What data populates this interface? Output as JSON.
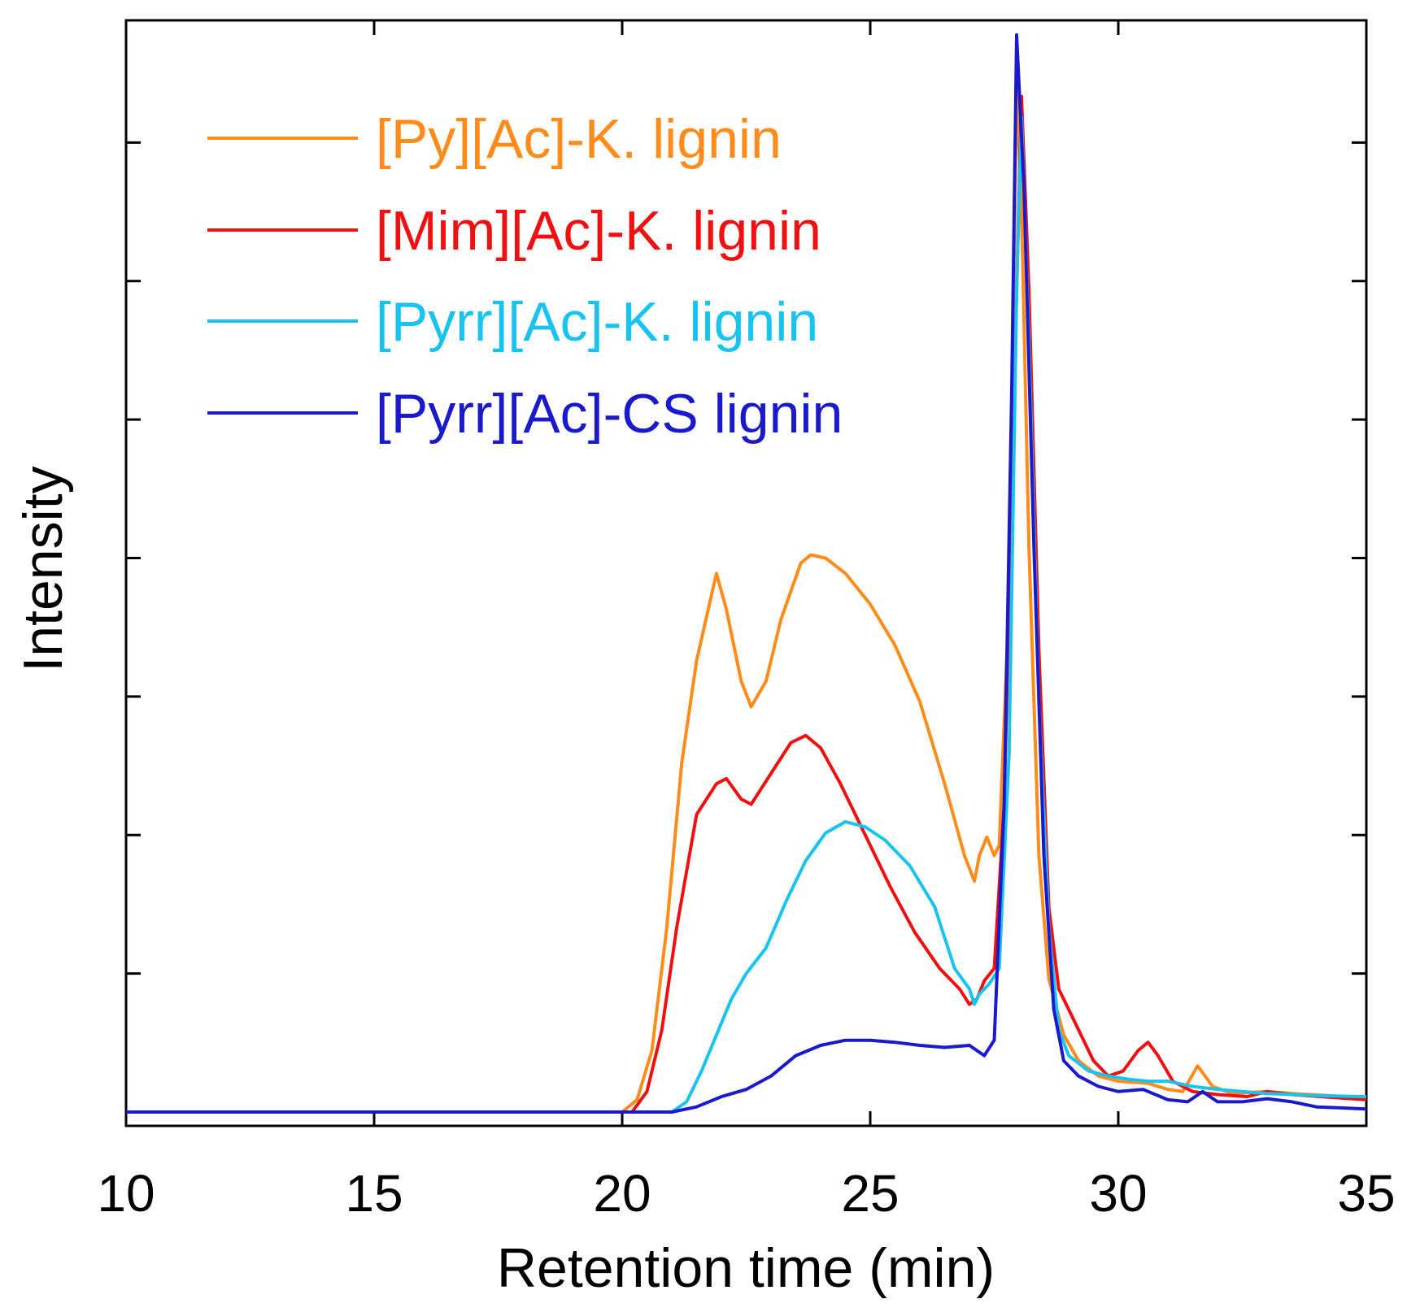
{
  "chart_data": {
    "type": "line",
    "title": "",
    "xlabel": "Retention time (min)",
    "ylabel": "Intensity",
    "xlim": [
      10,
      35
    ],
    "ylim": [
      0,
      1.0
    ],
    "xticks": [
      10,
      15,
      20,
      25,
      30,
      35
    ],
    "xtick_labels": [
      "10",
      "15",
      "20",
      "25",
      "30",
      "35"
    ],
    "yticks": [
      0.135,
      0.27,
      0.405,
      0.54,
      0.675,
      0.81,
      0.945
    ],
    "grid": false,
    "legend_position": "top-left",
    "series": [
      {
        "name": "[Py][Ac]-K. lignin",
        "color": "#ff8c1a",
        "points": [
          [
            10,
            0
          ],
          [
            20,
            0
          ],
          [
            20.3,
            0.012
          ],
          [
            20.6,
            0.06
          ],
          [
            20.9,
            0.18
          ],
          [
            21.2,
            0.34
          ],
          [
            21.5,
            0.44
          ],
          [
            21.9,
            0.525
          ],
          [
            22.1,
            0.49
          ],
          [
            22.4,
            0.42
          ],
          [
            22.6,
            0.395
          ],
          [
            22.9,
            0.42
          ],
          [
            23.2,
            0.48
          ],
          [
            23.6,
            0.535
          ],
          [
            23.8,
            0.543
          ],
          [
            24.1,
            0.54
          ],
          [
            24.5,
            0.525
          ],
          [
            25.0,
            0.495
          ],
          [
            25.5,
            0.455
          ],
          [
            26.0,
            0.4
          ],
          [
            26.5,
            0.32
          ],
          [
            26.9,
            0.25
          ],
          [
            27.1,
            0.225
          ],
          [
            27.2,
            0.25
          ],
          [
            27.35,
            0.268
          ],
          [
            27.5,
            0.25
          ],
          [
            27.6,
            0.26
          ],
          [
            27.8,
            0.5
          ],
          [
            27.95,
            1.0
          ],
          [
            28.05,
            0.88
          ],
          [
            28.2,
            0.55
          ],
          [
            28.4,
            0.25
          ],
          [
            28.6,
            0.13
          ],
          [
            28.9,
            0.075
          ],
          [
            29.2,
            0.05
          ],
          [
            29.6,
            0.035
          ],
          [
            30.0,
            0.03
          ],
          [
            30.6,
            0.028
          ],
          [
            31.0,
            0.022
          ],
          [
            31.3,
            0.02
          ],
          [
            31.6,
            0.045
          ],
          [
            31.9,
            0.025
          ],
          [
            32.3,
            0.018
          ],
          [
            33.0,
            0.02
          ],
          [
            33.5,
            0.018
          ],
          [
            35,
            0.014
          ]
        ]
      },
      {
        "name": "[Mim][Ac]-K. lignin",
        "color": "#f01010",
        "points": [
          [
            10,
            0
          ],
          [
            20.2,
            0
          ],
          [
            20.5,
            0.02
          ],
          [
            20.8,
            0.08
          ],
          [
            21.1,
            0.18
          ],
          [
            21.5,
            0.29
          ],
          [
            21.9,
            0.32
          ],
          [
            22.1,
            0.325
          ],
          [
            22.4,
            0.305
          ],
          [
            22.6,
            0.3
          ],
          [
            23.0,
            0.33
          ],
          [
            23.4,
            0.36
          ],
          [
            23.7,
            0.367
          ],
          [
            24.0,
            0.355
          ],
          [
            24.4,
            0.32
          ],
          [
            24.9,
            0.27
          ],
          [
            25.4,
            0.22
          ],
          [
            25.9,
            0.175
          ],
          [
            26.4,
            0.14
          ],
          [
            26.8,
            0.12
          ],
          [
            27.0,
            0.105
          ],
          [
            27.15,
            0.11
          ],
          [
            27.3,
            0.128
          ],
          [
            27.5,
            0.14
          ],
          [
            27.7,
            0.3
          ],
          [
            27.9,
            0.7
          ],
          [
            28.05,
            0.99
          ],
          [
            28.2,
            0.8
          ],
          [
            28.4,
            0.45
          ],
          [
            28.6,
            0.2
          ],
          [
            28.8,
            0.12
          ],
          [
            29.0,
            0.1
          ],
          [
            29.2,
            0.08
          ],
          [
            29.5,
            0.05
          ],
          [
            29.8,
            0.035
          ],
          [
            30.1,
            0.04
          ],
          [
            30.4,
            0.06
          ],
          [
            30.6,
            0.068
          ],
          [
            30.8,
            0.055
          ],
          [
            31.1,
            0.03
          ],
          [
            31.5,
            0.02
          ],
          [
            32.0,
            0.017
          ],
          [
            32.6,
            0.015
          ],
          [
            33.0,
            0.02
          ],
          [
            33.5,
            0.017
          ],
          [
            35,
            0.012
          ]
        ]
      },
      {
        "name": "[Pyrr][Ac]-K. lignin",
        "color": "#19c3f0",
        "points": [
          [
            10,
            0
          ],
          [
            21,
            0
          ],
          [
            21.3,
            0.01
          ],
          [
            21.6,
            0.04
          ],
          [
            21.9,
            0.075
          ],
          [
            22.2,
            0.11
          ],
          [
            22.5,
            0.135
          ],
          [
            22.9,
            0.16
          ],
          [
            23.3,
            0.205
          ],
          [
            23.7,
            0.245
          ],
          [
            24.1,
            0.272
          ],
          [
            24.5,
            0.283
          ],
          [
            24.9,
            0.278
          ],
          [
            25.3,
            0.265
          ],
          [
            25.8,
            0.24
          ],
          [
            26.3,
            0.2
          ],
          [
            26.7,
            0.14
          ],
          [
            27.0,
            0.12
          ],
          [
            27.1,
            0.105
          ],
          [
            27.2,
            0.115
          ],
          [
            27.4,
            0.125
          ],
          [
            27.6,
            0.14
          ],
          [
            27.8,
            0.35
          ],
          [
            27.95,
            0.8
          ],
          [
            28.05,
            0.97
          ],
          [
            28.2,
            0.75
          ],
          [
            28.4,
            0.4
          ],
          [
            28.6,
            0.18
          ],
          [
            28.8,
            0.08
          ],
          [
            29.0,
            0.055
          ],
          [
            29.4,
            0.04
          ],
          [
            29.8,
            0.035
          ],
          [
            30.2,
            0.032
          ],
          [
            30.6,
            0.03
          ],
          [
            31.0,
            0.03
          ],
          [
            31.5,
            0.025
          ],
          [
            32.0,
            0.022
          ],
          [
            33.0,
            0.018
          ],
          [
            34.0,
            0.016
          ],
          [
            35,
            0.015
          ]
        ]
      },
      {
        "name": "[Pyrr][Ac]-CS lignin",
        "color": "#1a1acc",
        "points": [
          [
            10,
            0
          ],
          [
            21,
            0
          ],
          [
            21.5,
            0.005
          ],
          [
            22.0,
            0.015
          ],
          [
            22.5,
            0.022
          ],
          [
            23.0,
            0.035
          ],
          [
            23.5,
            0.055
          ],
          [
            24.0,
            0.065
          ],
          [
            24.5,
            0.07
          ],
          [
            25.0,
            0.07
          ],
          [
            25.5,
            0.068
          ],
          [
            26.0,
            0.065
          ],
          [
            26.5,
            0.063
          ],
          [
            27.0,
            0.065
          ],
          [
            27.3,
            0.055
          ],
          [
            27.5,
            0.07
          ],
          [
            27.7,
            0.3
          ],
          [
            27.85,
            0.7
          ],
          [
            27.95,
            1.05
          ],
          [
            28.1,
            0.9
          ],
          [
            28.3,
            0.55
          ],
          [
            28.5,
            0.25
          ],
          [
            28.7,
            0.1
          ],
          [
            28.9,
            0.05
          ],
          [
            29.2,
            0.035
          ],
          [
            29.6,
            0.025
          ],
          [
            30.0,
            0.02
          ],
          [
            30.5,
            0.022
          ],
          [
            31.0,
            0.012
          ],
          [
            31.4,
            0.01
          ],
          [
            31.7,
            0.02
          ],
          [
            32.0,
            0.01
          ],
          [
            32.5,
            0.01
          ],
          [
            33.0,
            0.013
          ],
          [
            33.5,
            0.01
          ],
          [
            34.0,
            0.005
          ],
          [
            35,
            0.003
          ]
        ]
      }
    ]
  }
}
